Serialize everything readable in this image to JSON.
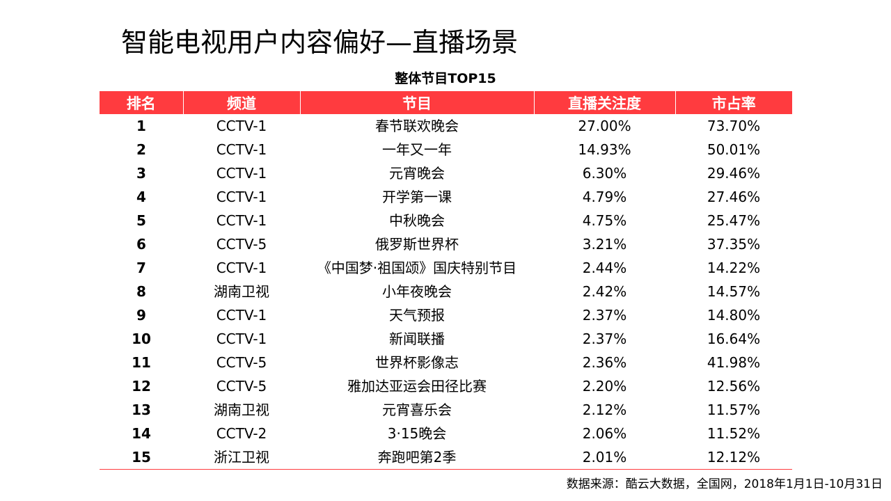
{
  "page": {
    "title": "智能电视用户内容偏好—直播场景",
    "subtitle": "整体节目TOP15",
    "source": "数据来源：酷云大数据，全国网，2018年1月1日-10月31日"
  },
  "colors": {
    "header_bg": "#ff3b3f",
    "header_text": "#ffffff"
  },
  "table": {
    "headers": [
      "排名",
      "频道",
      "节目",
      "直播关注度",
      "市占率"
    ],
    "rows": [
      [
        "1",
        "CCTV-1",
        "春节联欢晚会",
        "27.00%",
        "73.70%"
      ],
      [
        "2",
        "CCTV-1",
        "一年又一年",
        "14.93%",
        "50.01%"
      ],
      [
        "3",
        "CCTV-1",
        "元宵晚会",
        "6.30%",
        "29.46%"
      ],
      [
        "4",
        "CCTV-1",
        "开学第一课",
        "4.79%",
        "27.46%"
      ],
      [
        "5",
        "CCTV-1",
        "中秋晚会",
        "4.75%",
        "25.47%"
      ],
      [
        "6",
        "CCTV-5",
        "俄罗斯世界杯",
        "3.21%",
        "37.35%"
      ],
      [
        "7",
        "CCTV-1",
        "《中国梦·祖国颂》国庆特别节目",
        "2.44%",
        "14.22%"
      ],
      [
        "8",
        "湖南卫视",
        "小年夜晚会",
        "2.42%",
        "14.57%"
      ],
      [
        "9",
        "CCTV-1",
        "天气预报",
        "2.37%",
        "14.80%"
      ],
      [
        "10",
        "CCTV-1",
        "新闻联播",
        "2.37%",
        "16.64%"
      ],
      [
        "11",
        "CCTV-5",
        "世界杯影像志",
        "2.36%",
        "41.98%"
      ],
      [
        "12",
        "CCTV-5",
        "雅加达亚运会田径比赛",
        "2.20%",
        "12.56%"
      ],
      [
        "13",
        "湖南卫视",
        "元宵喜乐会",
        "2.12%",
        "11.57%"
      ],
      [
        "14",
        "CCTV-2",
        "3·15晚会",
        "2.06%",
        "11.52%"
      ],
      [
        "15",
        "浙江卫视",
        "奔跑吧第2季",
        "2.01%",
        "12.12%"
      ]
    ]
  }
}
